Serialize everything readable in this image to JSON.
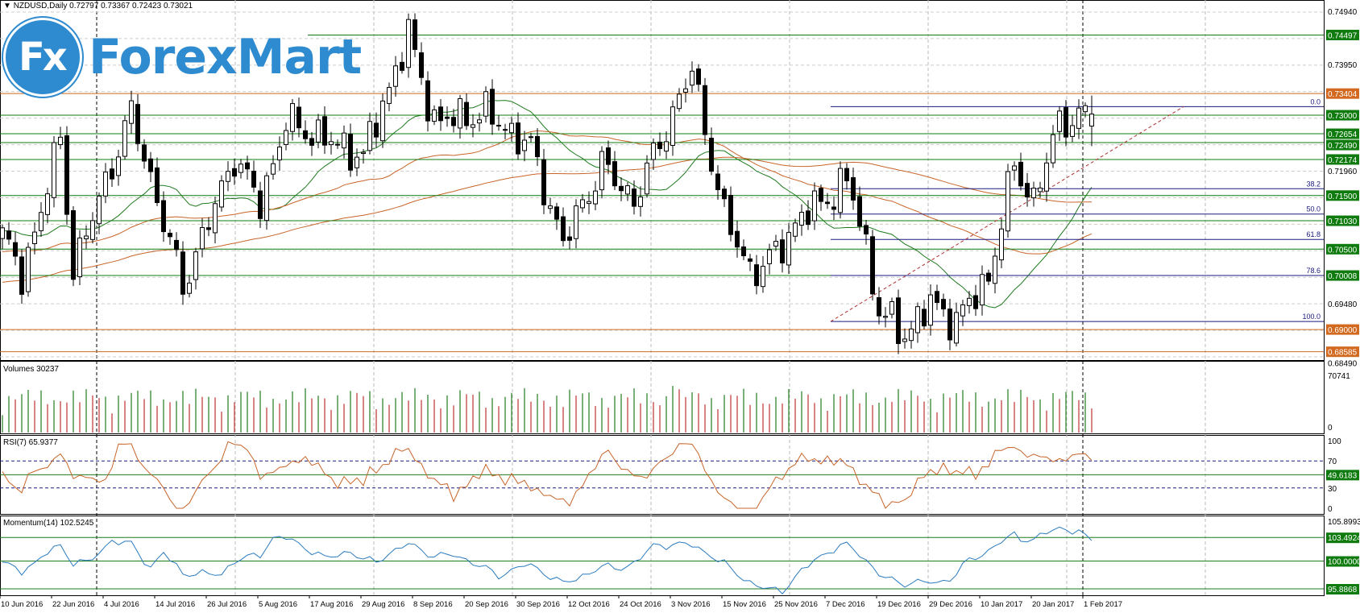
{
  "header": {
    "symbol": "NZDUSD,Daily",
    "open": "0.72797",
    "high": "0.73367",
    "low": "0.72423",
    "close": "0.73021"
  },
  "logo": {
    "badge": "Fx",
    "text": "ForexMart",
    "color": "#2e8bd0"
  },
  "price_axis": {
    "grid_labels": [
      "0.74940",
      "0.73950",
      "0.71960",
      "0.69480",
      "0.68490"
    ]
  },
  "levels": [
    {
      "value": "0.74497",
      "color": "#0f7b0f"
    },
    {
      "value": "0.73404",
      "color": "#d2691e"
    },
    {
      "value": "0.73000",
      "color": "#0f7b0f"
    },
    {
      "value": "0.72654",
      "color": "#0f7b0f"
    },
    {
      "value": "0.72490",
      "color": "#0f7b0f"
    },
    {
      "value": "0.72174",
      "color": "#0f7b0f"
    },
    {
      "value": "0.71500",
      "color": "#0f7b0f"
    },
    {
      "value": "0.71030",
      "color": "#0f7b0f"
    },
    {
      "value": "0.70500",
      "color": "#0f7b0f"
    },
    {
      "value": "0.70008",
      "color": "#0f7b0f"
    },
    {
      "value": "0.69000",
      "color": "#d2691e"
    },
    {
      "value": "0.68585",
      "color": "#d2691e"
    }
  ],
  "fibo": {
    "labels": [
      "0.0",
      "38.2",
      "50.0",
      "61.8",
      "78.6",
      "100.0"
    ],
    "ratios": [
      0,
      0.382,
      0.5,
      0.618,
      0.786,
      1
    ],
    "high": 0.7316,
    "low": 0.6915,
    "color": "#1a1a80"
  },
  "panels": {
    "volumes": {
      "title": "Volumes 30237",
      "max": "70741",
      "min": "0"
    },
    "rsi": {
      "title": "RSI(7) 65.9377",
      "ticks": [
        "100",
        "70",
        "30",
        "0"
      ],
      "level": "49.6183"
    },
    "momentum": {
      "title": "Momentum(14) 102.5245",
      "max": "105.8993",
      "levels": [
        "103.4924",
        "100.0000",
        "95.8868"
      ]
    }
  },
  "dates": [
    "10 Jun 2016",
    "22 Jun 2016",
    "4 Jul 2016",
    "14 Jul 2016",
    "26 Jul 2016",
    "5 Aug 2016",
    "17 Aug 2016",
    "29 Aug 2016",
    "8 Sep 2016",
    "20 Sep 2016",
    "30 Sep 2016",
    "12 Oct 2016",
    "24 Oct 2016",
    "3 Nov 2016",
    "15 Nov 2016",
    "25 Nov 2016",
    "7 Dec 2016",
    "19 Dec 2016",
    "29 Dec 2016",
    "10 Jan 2017",
    "20 Jan 2017",
    "1 Feb 2017"
  ],
  "chart_data": {
    "type": "candlestick",
    "title": "NZDUSD,Daily",
    "ylim": [
      0.6849,
      0.7494
    ],
    "bars": 170,
    "close_keypoints": [
      [
        0,
        0.7078
      ],
      [
        3,
        0.6996
      ],
      [
        9,
        0.7256
      ],
      [
        11,
        0.7013
      ],
      [
        20,
        0.7304
      ],
      [
        28,
        0.698
      ],
      [
        36,
        0.7223
      ],
      [
        40,
        0.7134
      ],
      [
        44,
        0.7288
      ],
      [
        56,
        0.7223
      ],
      [
        63,
        0.745
      ],
      [
        67,
        0.7288
      ],
      [
        75,
        0.7304
      ],
      [
        82,
        0.724
      ],
      [
        87,
        0.706
      ],
      [
        93,
        0.7207
      ],
      [
        98,
        0.714
      ],
      [
        104,
        0.7304
      ],
      [
        107,
        0.7385
      ],
      [
        112,
        0.711
      ],
      [
        116,
        0.7013
      ],
      [
        118,
        0.7013
      ],
      [
        124,
        0.711
      ],
      [
        131,
        0.7175
      ],
      [
        133,
        0.711
      ],
      [
        136,
        0.6932
      ],
      [
        140,
        0.6891
      ],
      [
        144,
        0.6948
      ],
      [
        148,
        0.6916
      ],
      [
        153,
        0.6997
      ],
      [
        157,
        0.7207
      ],
      [
        160,
        0.714
      ],
      [
        164,
        0.7288
      ],
      [
        169,
        0.7302
      ]
    ],
    "moving_averages": [
      {
        "period": 20,
        "color": "#1f7a1f"
      },
      {
        "period": 50,
        "color": "#c8652a"
      },
      {
        "period": 100,
        "color": "#c8652a"
      }
    ],
    "rsi_period": 7,
    "momentum_period": 14
  }
}
